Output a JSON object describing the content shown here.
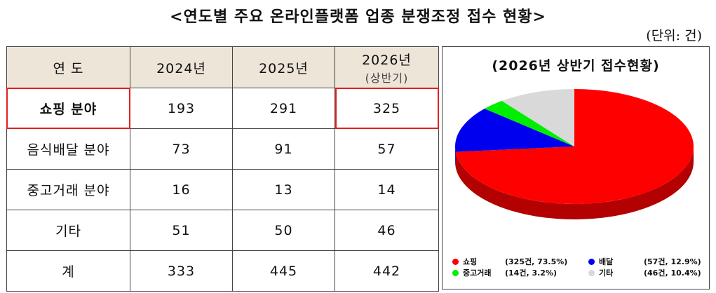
{
  "title": "<연도별 주요 온라인플랫폼 업종 분쟁조정 접수 현황>",
  "unit": "(단위: 건)",
  "table": {
    "header": {
      "label": "연 도",
      "y2024": "2024년",
      "y2025": "2025년",
      "y2026": "2026년",
      "y2026_note": "(상반기)"
    },
    "rows": [
      {
        "label": "쇼핑 분야",
        "y2024": "193",
        "y2025": "291",
        "y2026": "325"
      },
      {
        "label": "음식배달 분야",
        "y2024": "73",
        "y2025": "91",
        "y2026": "57"
      },
      {
        "label": "중고거래 분야",
        "y2024": "16",
        "y2025": "13",
        "y2026": "14"
      },
      {
        "label": "기타",
        "y2024": "51",
        "y2025": "50",
        "y2026": "46"
      },
      {
        "label": "계",
        "y2024": "333",
        "y2025": "445",
        "y2026": "442"
      }
    ]
  },
  "chart_data": {
    "type": "pie",
    "title": "(2026년 상반기 접수현황)",
    "slices": [
      {
        "name": "쇼핑",
        "value": 325,
        "percent": 73.5,
        "color": "#ff0000",
        "legend_detail": "(325건, 73.5%)"
      },
      {
        "name": "배달",
        "value": 57,
        "percent": 12.9,
        "color": "#0000ee",
        "legend_detail": "(57건, 12.9%)"
      },
      {
        "name": "중고거래",
        "value": 14,
        "percent": 3.2,
        "color": "#00ee00",
        "legend_detail": "(14건, 3.2%)"
      },
      {
        "name": "기타",
        "value": 46,
        "percent": 10.4,
        "color": "#d9d9d9",
        "legend_detail": "(46건, 10.4%)"
      }
    ],
    "legend_position": "bottom"
  }
}
